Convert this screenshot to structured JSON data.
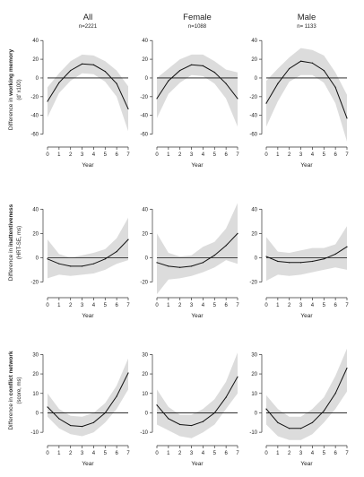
{
  "figure": {
    "columns": [
      {
        "title": "All",
        "subtitle": "n=2221"
      },
      {
        "title": "Female",
        "subtitle": "n=1088"
      },
      {
        "title": "Male",
        "subtitle": "n= 1133"
      }
    ],
    "rows": [
      {
        "ylabel_prefix": "Difference in ",
        "ylabel_bold": "working memory",
        "ylabel_units": "(d' x100)"
      },
      {
        "ylabel_prefix": "Difference in ",
        "ylabel_bold": "inattentiveness",
        "ylabel_units": "(HRT-SE, ms)"
      },
      {
        "ylabel_prefix": "Difference in ",
        "ylabel_bold": "conflict network",
        "ylabel_units": "(score, ms)"
      }
    ],
    "xlabel": "Year",
    "colors": {
      "line": "#111111",
      "band": "#dcdcdc",
      "axis": "#333333",
      "zero": "#111111"
    }
  },
  "chart_data": [
    {
      "type": "line",
      "row": 0,
      "col": 0,
      "x": [
        0,
        1,
        2,
        3,
        4,
        5,
        6,
        7
      ],
      "xlim": [
        0,
        7
      ],
      "ylim": [
        -70,
        45
      ],
      "yticks": [
        -60,
        -40,
        -20,
        0,
        20,
        40
      ],
      "series": [
        {
          "values": [
            -25,
            -5,
            8,
            15,
            14,
            7,
            -6,
            -33
          ],
          "lower": [
            -42,
            -16,
            -3,
            5,
            4,
            -4,
            -20,
            -57
          ],
          "upper": [
            -10,
            5,
            18,
            25,
            24,
            18,
            8,
            -9
          ]
        }
      ]
    },
    {
      "type": "line",
      "row": 0,
      "col": 1,
      "x": [
        0,
        1,
        2,
        3,
        4,
        5,
        6,
        7
      ],
      "xlim": [
        0,
        7
      ],
      "ylim": [
        -70,
        45
      ],
      "yticks": [
        -60,
        -40,
        -20,
        0,
        20,
        40
      ],
      "series": [
        {
          "values": [
            -22,
            -3,
            8,
            14,
            13,
            6,
            -6,
            -22
          ],
          "lower": [
            -43,
            -17,
            -5,
            3,
            2,
            -6,
            -22,
            -52
          ],
          "upper": [
            0,
            10,
            20,
            25,
            25,
            18,
            9,
            6
          ]
        }
      ]
    },
    {
      "type": "line",
      "row": 0,
      "col": 2,
      "x": [
        0,
        1,
        2,
        3,
        4,
        5,
        6,
        7
      ],
      "xlim": [
        0,
        7
      ],
      "ylim": [
        -70,
        45
      ],
      "yticks": [
        -60,
        -40,
        -20,
        0,
        20,
        40
      ],
      "series": [
        {
          "values": [
            -27,
            -6,
            10,
            18,
            16,
            8,
            -10,
            -43
          ],
          "lower": [
            -52,
            -25,
            -4,
            3,
            3,
            -5,
            -27,
            -68
          ],
          "upper": [
            -3,
            10,
            22,
            32,
            30,
            24,
            6,
            -18
          ]
        }
      ]
    },
    {
      "type": "line",
      "row": 1,
      "col": 0,
      "x": [
        0,
        1,
        2,
        3,
        4,
        5,
        6,
        7
      ],
      "xlim": [
        0,
        7
      ],
      "ylim": [
        -30,
        55
      ],
      "yticks": [
        -20,
        0,
        20,
        40
      ],
      "series": [
        {
          "values": [
            -1,
            -5,
            -7,
            -7,
            -5,
            -1,
            5,
            15
          ],
          "lower": [
            -17,
            -14,
            -15,
            -14,
            -13,
            -10,
            -5,
            -2
          ],
          "upper": [
            15,
            3,
            0,
            2,
            4,
            7,
            16,
            33
          ]
        }
      ]
    },
    {
      "type": "line",
      "row": 1,
      "col": 1,
      "x": [
        0,
        1,
        2,
        3,
        4,
        5,
        6,
        7
      ],
      "xlim": [
        0,
        7
      ],
      "ylim": [
        -30,
        55
      ],
      "yticks": [
        -20,
        0,
        20,
        40
      ],
      "series": [
        {
          "values": [
            -4,
            -7,
            -8,
            -7,
            -4,
            2,
            10,
            20
          ],
          "lower": [
            -30,
            -18,
            -17,
            -15,
            -12,
            -8,
            -2,
            -5
          ],
          "upper": [
            20,
            4,
            1,
            2,
            9,
            13,
            24,
            45
          ]
        }
      ]
    },
    {
      "type": "line",
      "row": 1,
      "col": 2,
      "x": [
        0,
        1,
        2,
        3,
        4,
        5,
        6,
        7
      ],
      "xlim": [
        0,
        7
      ],
      "ylim": [
        -30,
        55
      ],
      "yticks": [
        -20,
        0,
        20,
        40
      ],
      "series": [
        {
          "values": [
            1,
            -3,
            -4,
            -4,
            -3,
            -1,
            3,
            9
          ],
          "lower": [
            -19,
            -14,
            -15,
            -14,
            -12,
            -10,
            -8,
            -10
          ],
          "upper": [
            17,
            5,
            4,
            6,
            8,
            8,
            11,
            26
          ]
        }
      ]
    },
    {
      "type": "line",
      "row": 2,
      "col": 0,
      "x": [
        0,
        1,
        2,
        3,
        4,
        5,
        6,
        7
      ],
      "xlim": [
        0,
        7
      ],
      "ylim": [
        -15,
        38
      ],
      "yticks": [
        -10,
        0,
        10,
        20,
        30
      ],
      "series": [
        {
          "values": [
            3,
            -3,
            -6.5,
            -7,
            -5,
            0,
            8.5,
            20.5
          ],
          "lower": [
            -2,
            -8,
            -11,
            -12,
            -10,
            -5,
            2,
            12
          ],
          "upper": [
            10,
            2,
            -1.5,
            -2,
            0,
            5,
            14,
            28
          ]
        }
      ]
    },
    {
      "type": "line",
      "row": 2,
      "col": 1,
      "x": [
        0,
        1,
        2,
        3,
        4,
        5,
        6,
        7
      ],
      "xlim": [
        0,
        7
      ],
      "ylim": [
        -15,
        38
      ],
      "yticks": [
        -10,
        0,
        10,
        20,
        30
      ],
      "series": [
        {
          "values": [
            4,
            -3,
            -6,
            -6.5,
            -4.5,
            0,
            8,
            18.5
          ],
          "lower": [
            -6,
            -9,
            -12,
            -13,
            -10,
            -6,
            2,
            10
          ],
          "upper": [
            12,
            3,
            -1,
            -1,
            2,
            7,
            16,
            31
          ]
        }
      ]
    },
    {
      "type": "line",
      "row": 2,
      "col": 2,
      "x": [
        0,
        1,
        2,
        3,
        4,
        5,
        6,
        7
      ],
      "xlim": [
        0,
        7
      ],
      "ylim": [
        -15,
        38
      ],
      "yticks": [
        -10,
        0,
        10,
        20,
        30
      ],
      "series": [
        {
          "values": [
            2,
            -5,
            -8,
            -8,
            -5,
            1,
            10,
            23
          ],
          "lower": [
            -6,
            -12,
            -14,
            -14,
            -11,
            -5,
            2,
            11
          ],
          "upper": [
            9,
            2,
            -2,
            -2,
            2,
            8,
            19,
            33
          ]
        }
      ]
    }
  ]
}
